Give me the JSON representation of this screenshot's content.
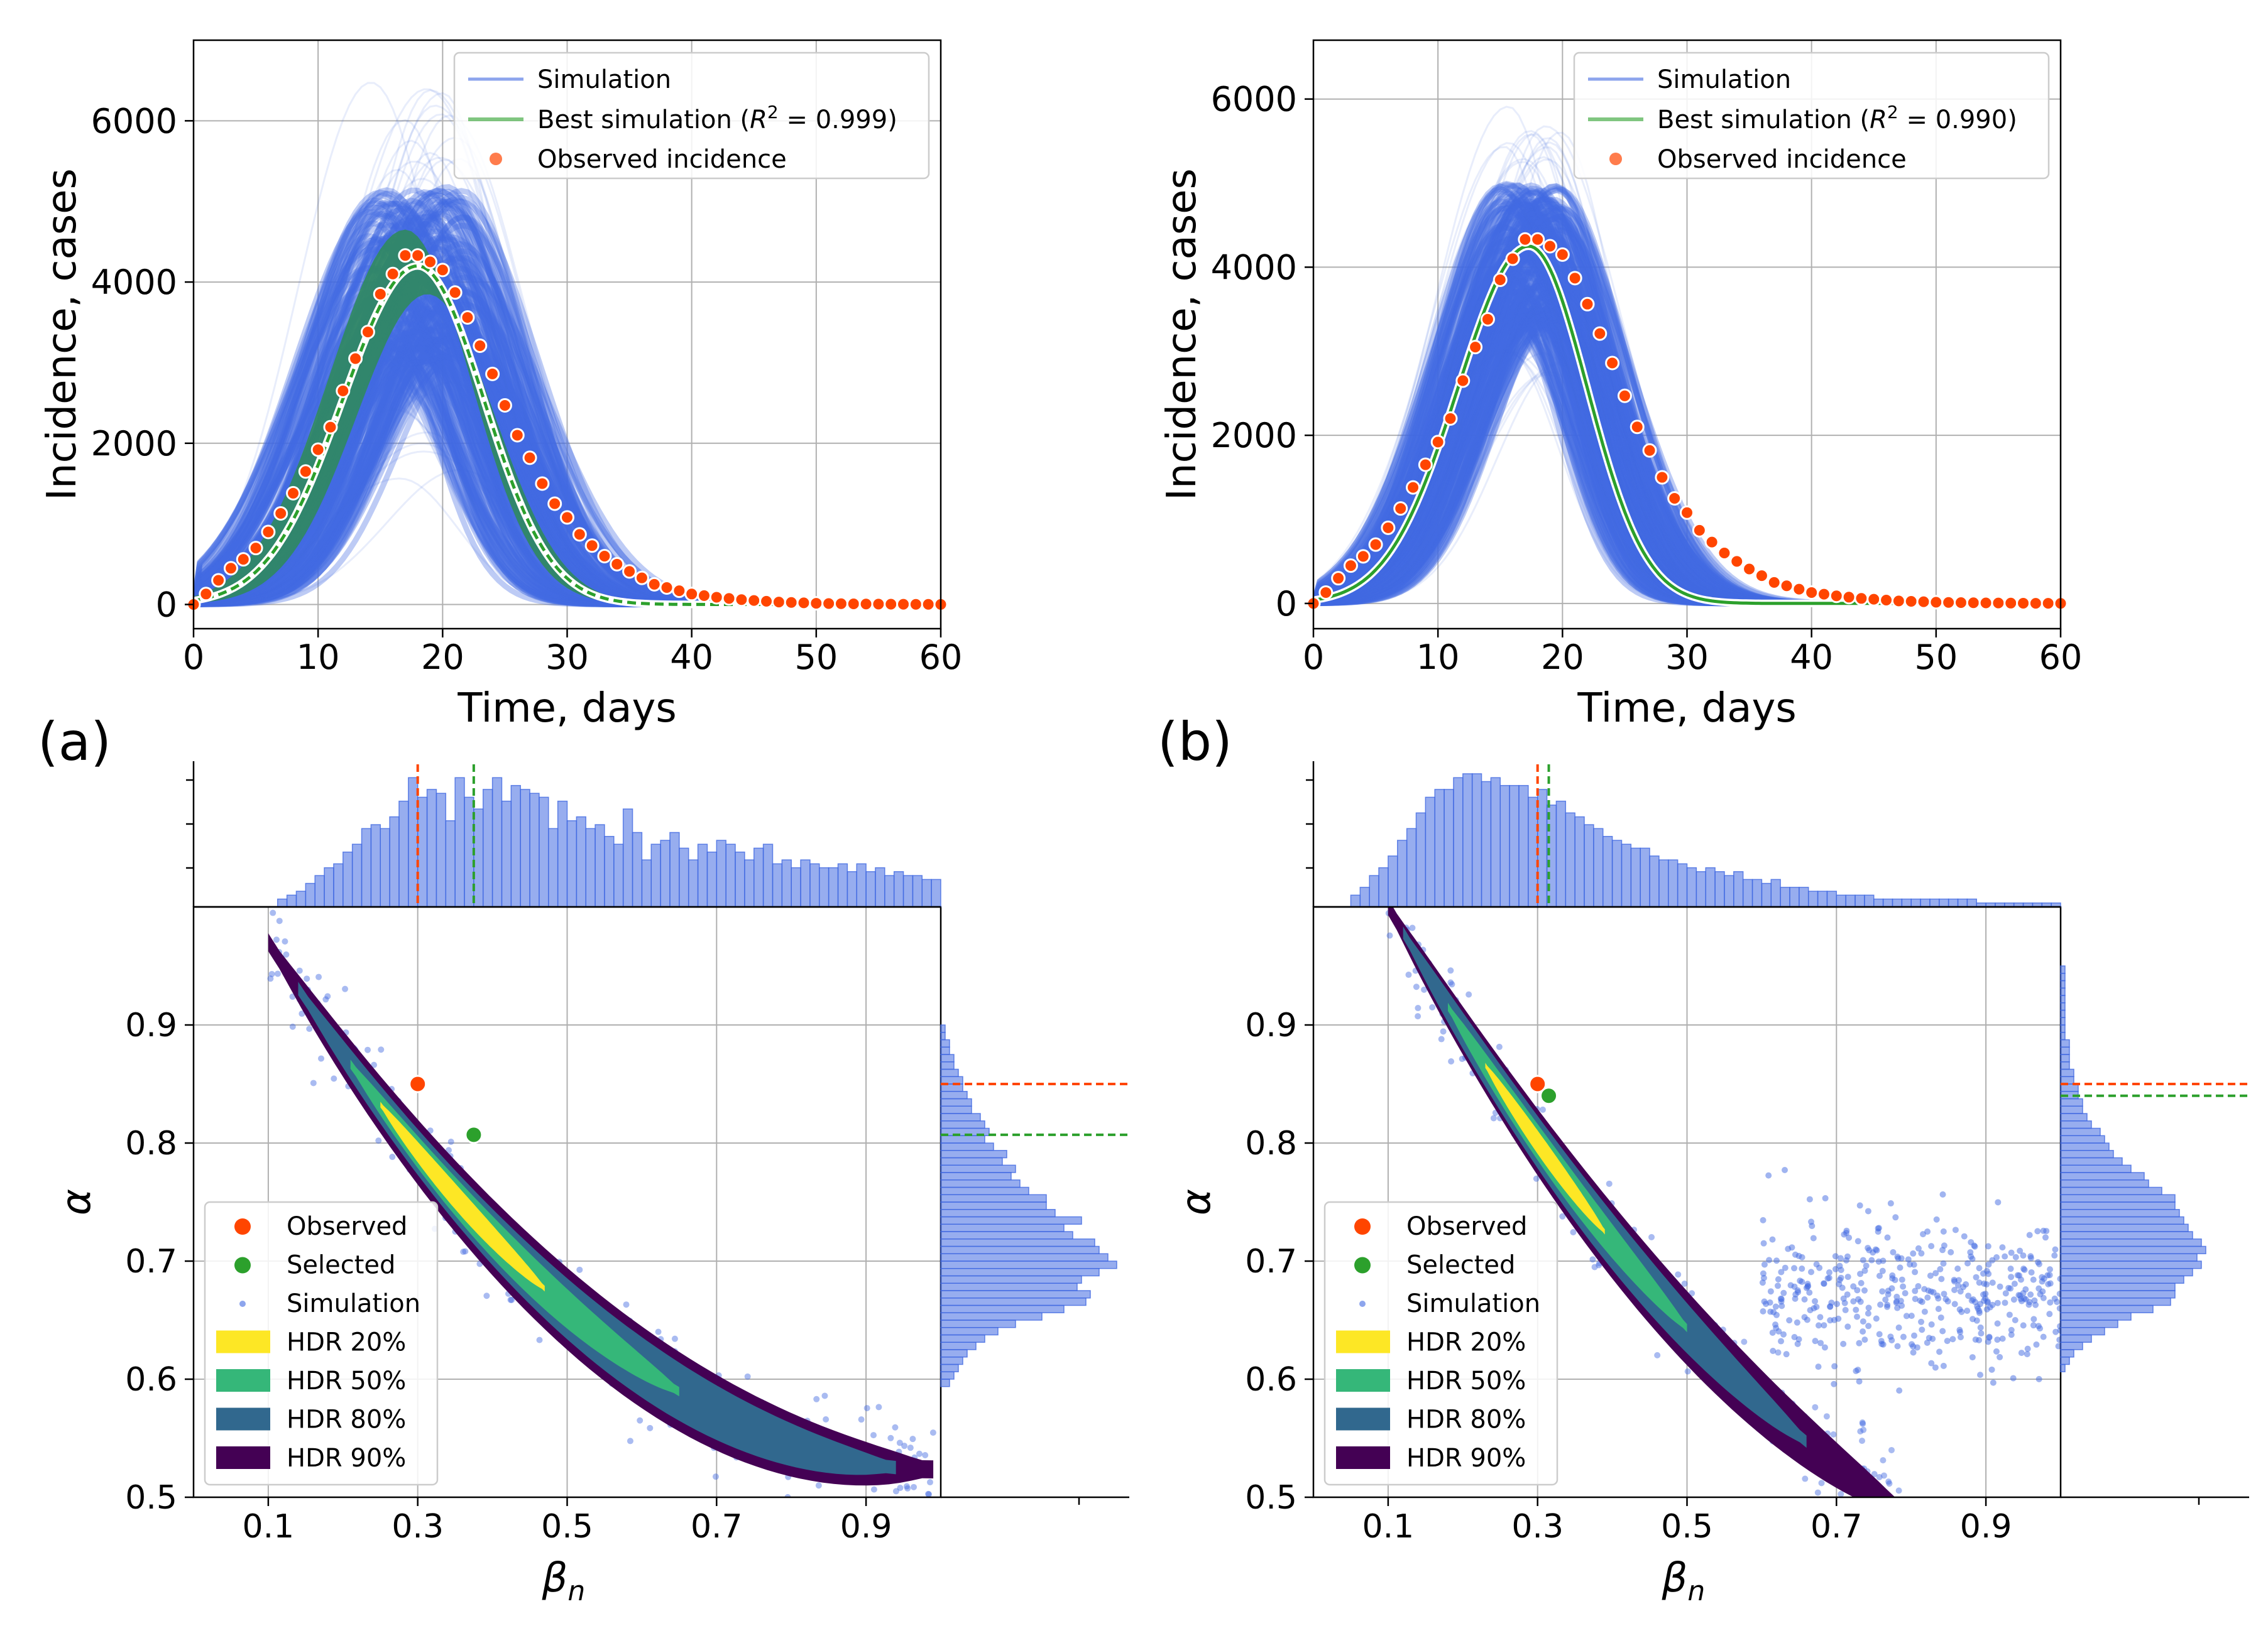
{
  "figure": {
    "panel_labels": [
      "(a)",
      "(b)"
    ]
  },
  "chart_data": [
    {
      "panel": "(a)",
      "type": "line",
      "xlabel": "Time, days",
      "ylabel": "Incidence, cases",
      "xlim": [
        0,
        60
      ],
      "ylim": [
        -300,
        7000
      ],
      "xticks": [
        0,
        10,
        20,
        30,
        40,
        50,
        60
      ],
      "yticks": [
        0,
        2000,
        4000,
        6000
      ],
      "grid": true,
      "legend_position": "top-right",
      "legend": [
        {
          "label": "Simulation",
          "color": "#4169e1"
        },
        {
          "label": "Best simulation (R² = 0.999)",
          "label_prefix": "Best simulation (",
          "label_r2": "R",
          "label_sup": "2",
          "label_value": " = 0.999)",
          "color": "#2ca02c"
        },
        {
          "label": "Observed incidence",
          "color": "#ff4500"
        }
      ],
      "observed": {
        "name": "Observed incidence",
        "x": [
          0,
          1,
          2,
          3,
          4,
          5,
          6,
          7,
          8,
          9,
          10,
          11,
          12,
          13,
          14,
          15,
          16,
          17,
          18,
          19,
          20,
          21,
          22,
          23,
          24,
          25,
          26,
          27,
          28,
          29,
          30,
          31,
          32,
          33,
          34,
          35,
          36,
          37,
          38,
          39,
          40,
          41,
          42,
          43,
          44,
          45,
          46,
          47,
          48,
          49,
          50,
          51,
          52,
          53,
          54,
          55,
          56,
          57,
          58,
          59,
          60
        ],
        "y": [
          0,
          130,
          300,
          450,
          560,
          700,
          900,
          1130,
          1380,
          1650,
          1920,
          2200,
          2650,
          3050,
          3380,
          3850,
          4100,
          4330,
          4330,
          4250,
          4150,
          3870,
          3560,
          3210,
          2860,
          2470,
          2100,
          1820,
          1500,
          1250,
          1080,
          870,
          730,
          600,
          500,
          410,
          330,
          250,
          210,
          170,
          130,
          110,
          90,
          75,
          60,
          50,
          40,
          30,
          25,
          20,
          15,
          12,
          10,
          8,
          6,
          5,
          4,
          3,
          2,
          2,
          1
        ]
      },
      "best_simulation": {
        "name": "Best simulation",
        "peak_day": 18,
        "peak": 4200,
        "rise_days": 8.5,
        "fall_days": 7.5,
        "color": "#2ca02c"
      },
      "simulation_band": {
        "name": "Simulation",
        "peak_day_range": [
          14,
          22
        ],
        "peak_range": [
          1500,
          6600
        ],
        "dense_peak_range": [
          3000,
          5200
        ],
        "color": "#4169e1"
      },
      "highlight_band": {
        "peak_low": 3850,
        "peak_high": 4650,
        "color": "#2e8b57"
      }
    },
    {
      "panel": "(b)",
      "type": "line",
      "xlabel": "Time, days",
      "ylabel": "Incidence, cases",
      "xlim": [
        0,
        60
      ],
      "ylim": [
        -300,
        6700
      ],
      "xticks": [
        0,
        10,
        20,
        30,
        40,
        50,
        60
      ],
      "yticks": [
        0,
        2000,
        4000,
        6000
      ],
      "grid": true,
      "legend_position": "top-right",
      "legend": [
        {
          "label": "Simulation",
          "color": "#4169e1"
        },
        {
          "label": "Best simulation (R² = 0.990)",
          "label_prefix": "Best simulation (",
          "label_r2": "R",
          "label_sup": "2",
          "label_value": " = 0.990)",
          "color": "#2ca02c"
        },
        {
          "label": "Observed incidence",
          "color": "#ff4500"
        }
      ],
      "observed": {
        "name": "Observed incidence",
        "x": [
          0,
          1,
          2,
          3,
          4,
          5,
          6,
          7,
          8,
          9,
          10,
          11,
          12,
          13,
          14,
          15,
          16,
          17,
          18,
          19,
          20,
          21,
          22,
          23,
          24,
          25,
          26,
          27,
          28,
          29,
          30,
          31,
          32,
          33,
          34,
          35,
          36,
          37,
          38,
          39,
          40,
          41,
          42,
          43,
          44,
          45,
          46,
          47,
          48,
          49,
          50,
          51,
          52,
          53,
          54,
          55,
          56,
          57,
          58,
          59,
          60
        ],
        "y": [
          0,
          130,
          300,
          450,
          560,
          700,
          900,
          1130,
          1380,
          1650,
          1920,
          2200,
          2650,
          3050,
          3380,
          3850,
          4100,
          4330,
          4330,
          4250,
          4150,
          3870,
          3560,
          3210,
          2860,
          2470,
          2100,
          1820,
          1500,
          1250,
          1080,
          870,
          730,
          600,
          500,
          410,
          330,
          250,
          210,
          170,
          130,
          110,
          90,
          75,
          60,
          50,
          40,
          30,
          25,
          20,
          15,
          12,
          10,
          8,
          6,
          5,
          4,
          3,
          2,
          2,
          1
        ]
      },
      "best_simulation": {
        "name": "Best simulation",
        "peak_day": 17.3,
        "peak": 4250,
        "rise_days": 8.0,
        "fall_days": 6.6,
        "color": "#2ca02c"
      },
      "simulation_band": {
        "name": "Simulation",
        "peak_day_range": [
          15,
          20
        ],
        "peak_range": [
          2700,
          6200
        ],
        "dense_peak_range": [
          3300,
          5000
        ],
        "color": "#4169e1"
      }
    },
    {
      "panel": "(a)",
      "type": "scatter",
      "xlabel": "β_n",
      "xlabel_main": "β",
      "xlabel_sub": "n",
      "ylabel": "α",
      "xlim": [
        0,
        1.0
      ],
      "ylim": [
        0.5,
        1.0
      ],
      "xticks": [
        0.1,
        0.3,
        0.5,
        0.7,
        0.9
      ],
      "yticks": [
        0.5,
        0.6,
        0.7,
        0.8,
        0.9
      ],
      "grid": true,
      "legend_position": "lower-left",
      "legend": [
        {
          "label": "Observed",
          "color": "#ff4500",
          "marker": "dot"
        },
        {
          "label": "Selected",
          "color": "#2ca02c",
          "marker": "dot"
        },
        {
          "label": "Simulation",
          "color": "#4169e1",
          "marker": "small-dot"
        },
        {
          "label": "HDR 20%",
          "color": "#fde725",
          "marker": "patch"
        },
        {
          "label": "HDR 50%",
          "color": "#35b779",
          "marker": "patch"
        },
        {
          "label": "HDR 80%",
          "color": "#31688e",
          "marker": "patch"
        },
        {
          "label": "HDR 90%",
          "color": "#440154",
          "marker": "patch"
        }
      ],
      "observed_point": {
        "beta_n": 0.3,
        "alpha": 0.85
      },
      "selected_point": {
        "beta_n": 0.375,
        "alpha": 0.807
      },
      "ridge": {
        "beta_start": 0.1,
        "beta_end": 0.99,
        "alpha_a": 0.97,
        "alpha_b": -1.0,
        "alpha_c": 0.56
      },
      "hdr_regions": [
        {
          "label": "HDR 90%",
          "beta_range": [
            0.1,
            0.99
          ],
          "half_width": 0.035
        },
        {
          "label": "HDR 80%",
          "beta_range": [
            0.14,
            0.94
          ],
          "half_width": 0.026
        },
        {
          "label": "HDR 50%",
          "beta_range": [
            0.21,
            0.65
          ],
          "half_width": 0.018
        },
        {
          "label": "HDR 20%",
          "beta_range": [
            0.25,
            0.47
          ],
          "half_width": 0.011
        }
      ],
      "scatter_spread": 0.035,
      "marginal_x": {
        "bin_start": 0.0,
        "bin_width": 0.0125,
        "counts": [
          0,
          0,
          0,
          0,
          0,
          0,
          0,
          0,
          0,
          2,
          3,
          4,
          6,
          8,
          10,
          11,
          14,
          16,
          20,
          21,
          20,
          23,
          27,
          33,
          28,
          30,
          29,
          22,
          33,
          28,
          25,
          30,
          33,
          27,
          31,
          30,
          29,
          28,
          20,
          27,
          22,
          23,
          20,
          21,
          18,
          16,
          25,
          19,
          12,
          16,
          17,
          19,
          15,
          12,
          16,
          14,
          17,
          16,
          14,
          12,
          15,
          16,
          11,
          12,
          10,
          12,
          11,
          10,
          10,
          11,
          9,
          11,
          9,
          10,
          8,
          9,
          8,
          8,
          7,
          7
        ]
      },
      "marginal_y": {
        "bin_start": 0.5,
        "bin_width": 0.00625,
        "counts": [
          0,
          0,
          0,
          0,
          0,
          0,
          0,
          0,
          0,
          0,
          0,
          0,
          0,
          0,
          0,
          2,
          3,
          4,
          5,
          6,
          8,
          10,
          13,
          17,
          23,
          28,
          33,
          34,
          31,
          32,
          36,
          40,
          38,
          36,
          35,
          30,
          28,
          32,
          26,
          24,
          24,
          20,
          18,
          16,
          17,
          14,
          15,
          12,
          10,
          11,
          10,
          9,
          7,
          7,
          6,
          5,
          5,
          4,
          3,
          3,
          2,
          2,
          1,
          1,
          0,
          0,
          0,
          0,
          0,
          0,
          0,
          0,
          0,
          0,
          0,
          0,
          0,
          0,
          0,
          0
        ]
      },
      "marginal_x_lines": [
        {
          "value": 0.3,
          "color": "#ff4500"
        },
        {
          "value": 0.375,
          "color": "#2ca02c"
        }
      ],
      "marginal_y_lines": [
        {
          "value": 0.85,
          "color": "#ff4500"
        },
        {
          "value": 0.807,
          "color": "#2ca02c"
        }
      ]
    },
    {
      "panel": "(b)",
      "type": "scatter",
      "xlabel": "β_n",
      "xlabel_main": "β",
      "xlabel_sub": "n",
      "ylabel": "α",
      "xlim": [
        0,
        1.0
      ],
      "ylim": [
        0.5,
        1.0
      ],
      "xticks": [
        0.1,
        0.3,
        0.5,
        0.7,
        0.9
      ],
      "yticks": [
        0.5,
        0.6,
        0.7,
        0.8,
        0.9
      ],
      "grid": true,
      "legend_position": "lower-left",
      "legend": [
        {
          "label": "Observed",
          "color": "#ff4500",
          "marker": "dot"
        },
        {
          "label": "Selected",
          "color": "#2ca02c",
          "marker": "dot"
        },
        {
          "label": "Simulation",
          "color": "#4169e1",
          "marker": "small-dot"
        },
        {
          "label": "HDR 20%",
          "color": "#fde725",
          "marker": "patch"
        },
        {
          "label": "HDR 50%",
          "color": "#35b779",
          "marker": "patch"
        },
        {
          "label": "HDR 80%",
          "color": "#31688e",
          "marker": "patch"
        },
        {
          "label": "HDR 90%",
          "color": "#440154",
          "marker": "patch"
        }
      ],
      "observed_point": {
        "beta_n": 0.3,
        "alpha": 0.85
      },
      "selected_point": {
        "beta_n": 0.315,
        "alpha": 0.84
      },
      "ridge": {
        "beta_start": 0.1,
        "beta_end": 0.79,
        "alpha_a": 1.0,
        "alpha_b": -1.1,
        "alpha_c": 0.52
      },
      "hdr_regions": [
        {
          "label": "HDR 90%",
          "beta_range": [
            0.1,
            0.79
          ],
          "half_width": 0.032
        },
        {
          "label": "HDR 80%",
          "beta_range": [
            0.12,
            0.66
          ],
          "half_width": 0.024
        },
        {
          "label": "HDR 50%",
          "beta_range": [
            0.18,
            0.5
          ],
          "half_width": 0.016
        },
        {
          "label": "HDR 20%",
          "beta_range": [
            0.23,
            0.39
          ],
          "half_width": 0.01
        }
      ],
      "scatter_spread": 0.03,
      "scatter_tail": {
        "beta_range": [
          0.6,
          1.0
        ],
        "alpha_center": 0.675,
        "alpha_spread": 0.03
      },
      "marginal_x": {
        "bin_start": 0.0,
        "bin_width": 0.0125,
        "counts": [
          0,
          0,
          0,
          0,
          3,
          5,
          8,
          10,
          13,
          17,
          20,
          24,
          28,
          30,
          30,
          33,
          34,
          34,
          32,
          33,
          31,
          31,
          31,
          28,
          30,
          26,
          27,
          24,
          23,
          21,
          20,
          18,
          17,
          16,
          15,
          15,
          13,
          12,
          12,
          11,
          10,
          9,
          10,
          9,
          8,
          9,
          7,
          7,
          6,
          7,
          5,
          5,
          5,
          4,
          4,
          4,
          3,
          3,
          3,
          3,
          2,
          2,
          2,
          2,
          2,
          2,
          2,
          2,
          2,
          2,
          2,
          1,
          1,
          1,
          1,
          1,
          1,
          1,
          1,
          1
        ]
      },
      "marginal_y": {
        "bin_start": 0.5,
        "bin_width": 0.00625,
        "counts": [
          0,
          0,
          0,
          0,
          0,
          0,
          0,
          0,
          0,
          0,
          0,
          0,
          0,
          0,
          0,
          0,
          0,
          1,
          2,
          3,
          5,
          7,
          10,
          13,
          16,
          21,
          25,
          26,
          26,
          28,
          30,
          32,
          31,
          33,
          32,
          30,
          29,
          28,
          27,
          26,
          26,
          23,
          20,
          19,
          16,
          14,
          12,
          11,
          10,
          9,
          7,
          6,
          5,
          5,
          4,
          4,
          3,
          3,
          2,
          2,
          2,
          2,
          1,
          1,
          1,
          1,
          1,
          1,
          1,
          1,
          1,
          1,
          0,
          0,
          0,
          0,
          0,
          0,
          0,
          0
        ]
      },
      "marginal_x_lines": [
        {
          "value": 0.3,
          "color": "#ff4500"
        },
        {
          "value": 0.315,
          "color": "#2ca02c"
        }
      ],
      "marginal_y_lines": [
        {
          "value": 0.85,
          "color": "#ff4500"
        },
        {
          "value": 0.84,
          "color": "#2ca02c"
        }
      ]
    }
  ]
}
